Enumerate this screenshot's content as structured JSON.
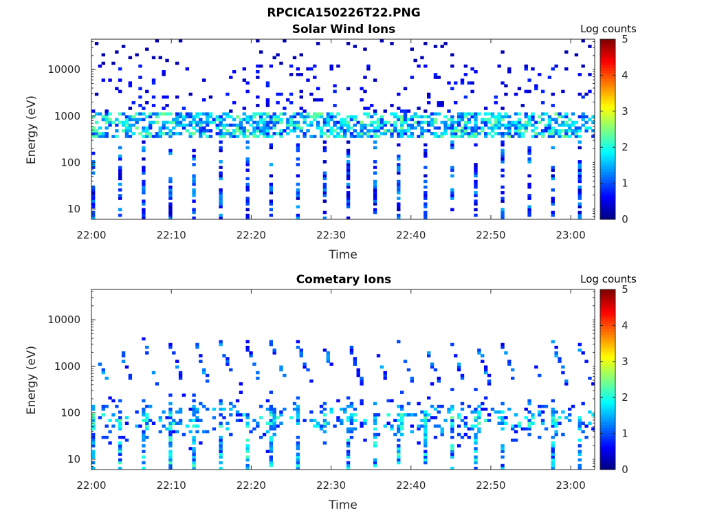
{
  "figure_title": "RPCICA150226T22.PNG",
  "chart_data": [
    {
      "type": "heatmap",
      "title": "Solar Wind Ions",
      "xlabel": "Time",
      "ylabel": "Energy (eV)",
      "x_ticks": [
        "22:00",
        "22:10",
        "22:20",
        "22:30",
        "22:40",
        "22:50",
        "23:00"
      ],
      "x_range_minutes": [
        0,
        63
      ],
      "y_ticks": [
        "10",
        "100",
        "1000",
        "10000"
      ],
      "y_scale": "log",
      "y_range": [
        6,
        45000
      ],
      "colorbar": {
        "label": "Log counts",
        "ticks": [
          "0",
          "1",
          "2",
          "3",
          "4",
          "5"
        ],
        "range": [
          0,
          5
        ],
        "colormap": "jet"
      },
      "features": {
        "solar_wind_band_eV": [
          400,
          1200
        ],
        "sweep_period_minutes": 3.2,
        "typical_log_counts": [
          0.3,
          2.0
        ]
      }
    },
    {
      "type": "heatmap",
      "title": "Cometary Ions",
      "xlabel": "Time",
      "ylabel": "Energy (eV)",
      "x_ticks": [
        "22:00",
        "22:10",
        "22:20",
        "22:30",
        "22:40",
        "22:50",
        "23:00"
      ],
      "x_range_minutes": [
        0,
        63
      ],
      "y_ticks": [
        "10",
        "100",
        "1000",
        "10000"
      ],
      "y_scale": "log",
      "y_range": [
        6,
        45000
      ],
      "colorbar": {
        "label": "Log counts",
        "ticks": [
          "0",
          "1",
          "2",
          "3",
          "4",
          "5"
        ],
        "range": [
          0,
          5
        ],
        "colormap": "jet"
      },
      "features": {
        "cometary_band_eV": [
          20,
          150
        ],
        "sweep_period_minutes": 3.2,
        "typical_log_counts": [
          0.3,
          2.3
        ]
      }
    }
  ]
}
